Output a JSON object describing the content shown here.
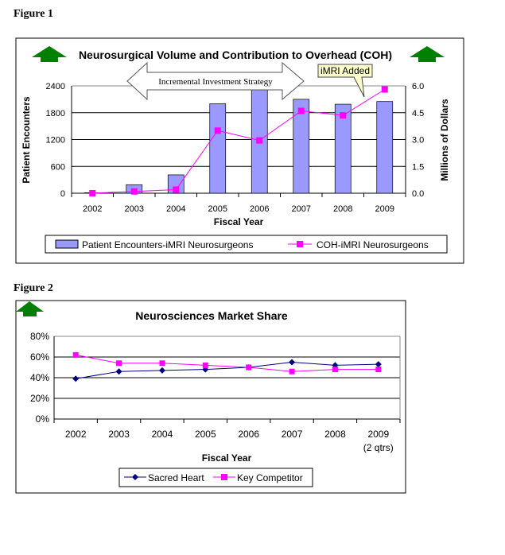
{
  "figure1_label": "Figure 1",
  "figure2_label": "Figure 2",
  "chart_data": [
    {
      "type": "bar+line",
      "title": "Neurosurgical Volume and Contribution to Overhead (COH)",
      "categories": [
        "2002",
        "2003",
        "2004",
        "2005",
        "2006",
        "2007",
        "2008",
        "2009"
      ],
      "xlabel": "Fiscal Year",
      "ylabel": "Patient Encounters",
      "y2label": "Millions of Dollars",
      "ylim": [
        0,
        2400
      ],
      "yticks": [
        "0",
        "600",
        "1200",
        "1800",
        "2400"
      ],
      "y2lim": [
        0,
        6
      ],
      "y2ticks": [
        "0.0",
        "1.5",
        "3.0",
        "4.5",
        "6.0"
      ],
      "series": [
        {
          "name": "Patient Encounters-iMRI Neurosurgeons",
          "type": "bar",
          "axis": "left",
          "color": "#9999ff",
          "values": [
            10,
            190,
            410,
            2000,
            2500,
            2100,
            1990,
            2050
          ]
        },
        {
          "name": "COH-iMRI Neurosurgeons",
          "type": "line",
          "axis": "right",
          "color": "#ff00ff",
          "values": [
            0.0,
            0.1,
            0.2,
            3.5,
            2.95,
            4.6,
            4.35,
            5.8
          ]
        }
      ],
      "annotations": [
        "Incremental Investment Strategy",
        "iMRI Added"
      ],
      "legend": "bottom"
    },
    {
      "type": "line",
      "title": "Neurosciences Market Share",
      "categories": [
        "2002",
        "2003",
        "2004",
        "2005",
        "2006",
        "2007",
        "2008",
        "2009"
      ],
      "category_sublabels": [
        "",
        "",
        "",
        "",
        "",
        "",
        "",
        "(2 qtrs)"
      ],
      "xlabel": "Fiscal Year",
      "ylim": [
        0,
        80
      ],
      "yticks": [
        "0%",
        "20%",
        "40%",
        "60%",
        "80%"
      ],
      "series": [
        {
          "name": "Sacred Heart",
          "color": "#000080",
          "marker": "diamond",
          "values": [
            39,
            46,
            47,
            48,
            50,
            55,
            52,
            53
          ]
        },
        {
          "name": "Key Competitor",
          "color": "#ff00ff",
          "marker": "square",
          "values": [
            62,
            54,
            54,
            52,
            50,
            46,
            48,
            48
          ]
        }
      ],
      "legend": "bottom"
    }
  ]
}
